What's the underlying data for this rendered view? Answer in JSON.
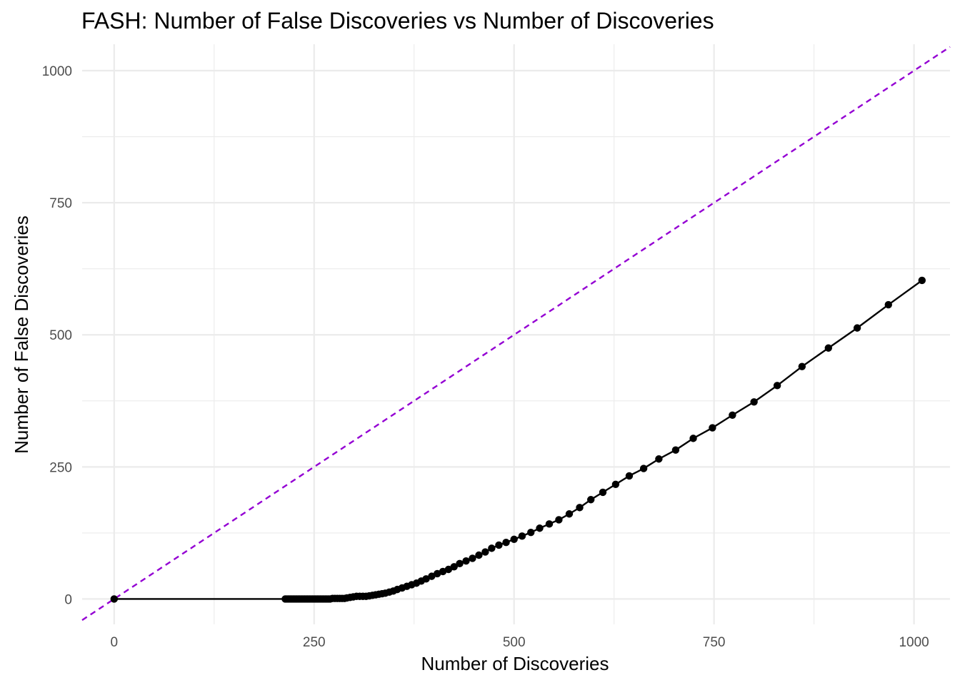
{
  "chart_data": {
    "type": "line",
    "title": "FASH: Number of False Discoveries vs Number of Discoveries",
    "xlabel": "Number of Discoveries",
    "ylabel": "Number of False Discoveries",
    "xlim": [
      -40,
      1045
    ],
    "ylim": [
      -48,
      1050
    ],
    "x_ticks": [
      0,
      250,
      500,
      750,
      1000
    ],
    "y_ticks": [
      0,
      250,
      500,
      750,
      1000
    ],
    "x_tick_labels": [
      "0",
      "250",
      "500",
      "750",
      "1000"
    ],
    "y_tick_labels": [
      "0",
      "250",
      "500",
      "750",
      "1000"
    ],
    "grid": true,
    "reference_line": {
      "slope": 1,
      "intercept": 0,
      "style": "dashed",
      "color": "#9400D3"
    },
    "series": [
      {
        "color": "#000000",
        "markers": true,
        "points": [
          [
            0,
            0
          ],
          [
            214,
            0
          ],
          [
            216,
            0
          ],
          [
            218,
            0
          ],
          [
            220,
            0
          ],
          [
            222,
            0
          ],
          [
            224,
            0
          ],
          [
            226,
            0
          ],
          [
            228,
            0
          ],
          [
            230,
            0
          ],
          [
            232,
            0
          ],
          [
            234,
            0
          ],
          [
            236,
            0
          ],
          [
            238,
            0
          ],
          [
            240,
            0
          ],
          [
            242,
            0
          ],
          [
            244,
            0
          ],
          [
            246,
            0
          ],
          [
            248,
            0
          ],
          [
            250,
            0
          ],
          [
            252,
            0
          ],
          [
            254,
            0
          ],
          [
            256,
            0
          ],
          [
            258,
            0
          ],
          [
            260,
            0
          ],
          [
            262,
            0
          ],
          [
            264,
            0
          ],
          [
            266,
            0
          ],
          [
            268,
            0
          ],
          [
            270,
            0
          ],
          [
            273,
            1
          ],
          [
            276,
            1
          ],
          [
            279,
            1
          ],
          [
            282,
            1
          ],
          [
            285,
            1
          ],
          [
            288,
            1
          ],
          [
            291,
            2
          ],
          [
            295,
            3
          ],
          [
            299,
            4
          ],
          [
            303,
            5
          ],
          [
            307,
            5
          ],
          [
            311,
            5
          ],
          [
            315,
            5
          ],
          [
            319,
            6
          ],
          [
            323,
            7
          ],
          [
            327,
            8
          ],
          [
            331,
            9
          ],
          [
            335,
            10
          ],
          [
            339,
            11
          ],
          [
            344,
            13
          ],
          [
            349,
            15
          ],
          [
            354,
            18
          ],
          [
            360,
            21
          ],
          [
            366,
            24
          ],
          [
            372,
            27
          ],
          [
            378,
            30
          ],
          [
            384,
            34
          ],
          [
            390,
            38
          ],
          [
            397,
            43
          ],
          [
            404,
            48
          ],
          [
            411,
            52
          ],
          [
            418,
            56
          ],
          [
            425,
            61
          ],
          [
            432,
            67
          ],
          [
            440,
            72
          ],
          [
            448,
            77
          ],
          [
            456,
            83
          ],
          [
            464,
            89
          ],
          [
            472,
            96
          ],
          [
            481,
            102
          ],
          [
            490,
            107
          ],
          [
            500,
            113
          ],
          [
            510,
            119
          ],
          [
            521,
            126
          ],
          [
            532,
            134
          ],
          [
            544,
            142
          ],
          [
            556,
            150
          ],
          [
            569,
            161
          ],
          [
            582,
            173
          ],
          [
            596,
            188
          ],
          [
            611,
            202
          ],
          [
            627,
            217
          ],
          [
            644,
            233
          ],
          [
            662,
            247
          ],
          [
            681,
            265
          ],
          [
            702,
            282
          ],
          [
            724,
            304
          ],
          [
            748,
            324
          ],
          [
            773,
            348
          ],
          [
            800,
            373
          ],
          [
            829,
            404
          ],
          [
            860,
            440
          ],
          [
            893,
            475
          ],
          [
            929,
            513
          ],
          [
            968,
            557
          ],
          [
            1010,
            603
          ]
        ]
      }
    ]
  }
}
